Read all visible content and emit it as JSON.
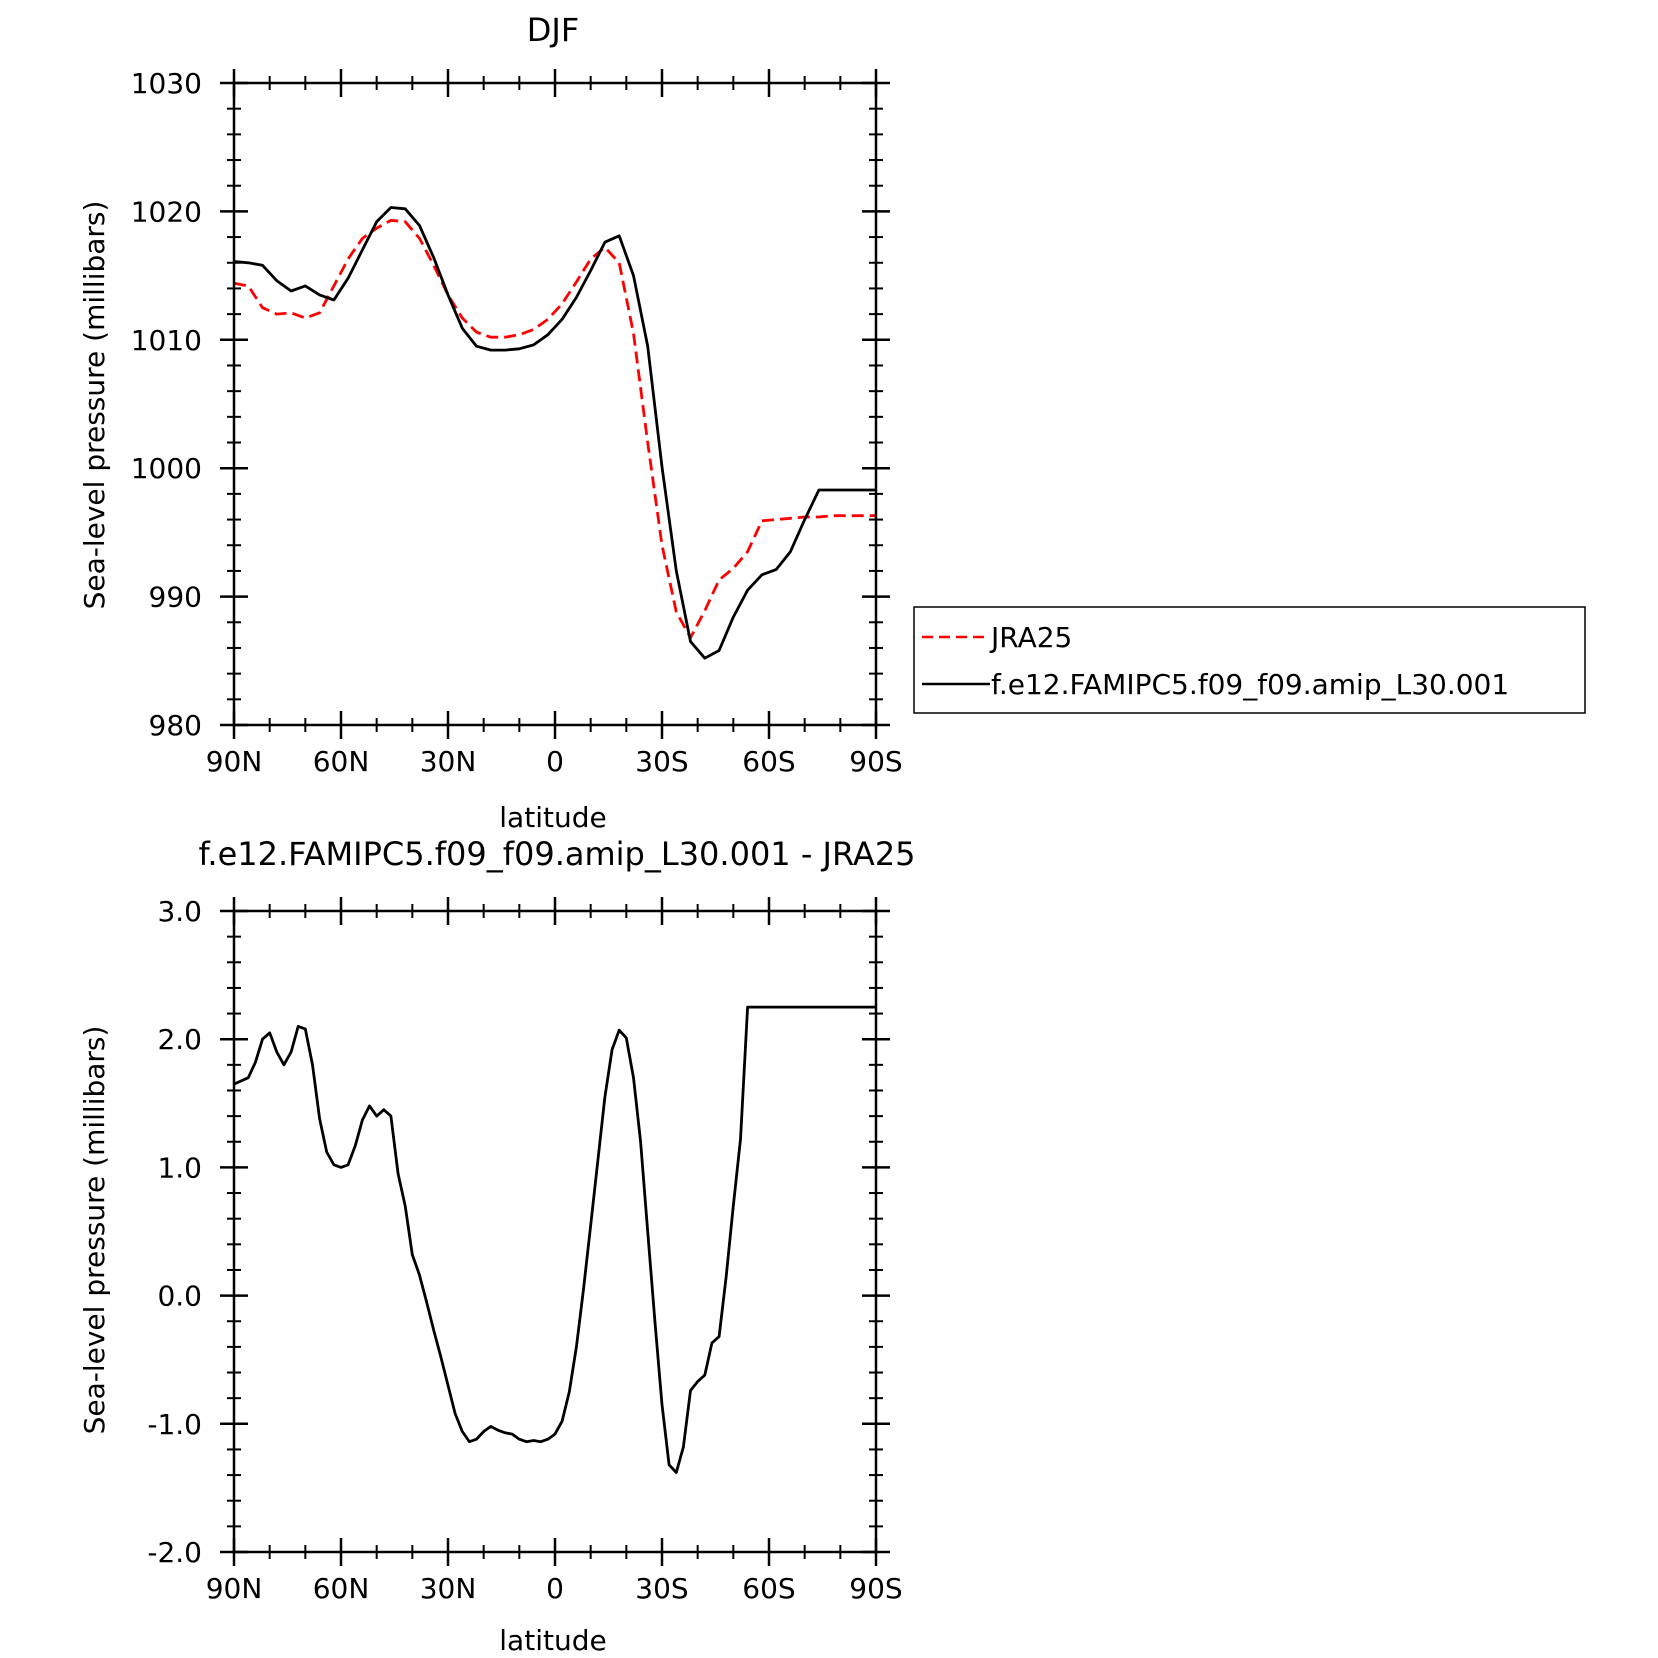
{
  "chart_data": [
    {
      "type": "line",
      "title": "DJF",
      "xlabel": "latitude",
      "ylabel": "Sea-level pressure (millibars)",
      "x_ticks": [
        "90N",
        "60N",
        "30N",
        "0",
        "30S",
        "60S",
        "90S"
      ],
      "x_tick_values": [
        90,
        60,
        30,
        0,
        -30,
        -60,
        -90
      ],
      "y_ticks": [
        "980",
        "990",
        "1000",
        "1010",
        "1020",
        "1030"
      ],
      "ylim": [
        980,
        1030
      ],
      "xlim": [
        90,
        -90
      ],
      "grid": false,
      "legend_position": "right, outside plot",
      "series": [
        {
          "name": "JRA25",
          "color": "#ff0000",
          "dash": "dashed",
          "x": [
            90,
            86,
            82,
            78,
            74,
            70,
            66,
            62,
            58,
            54,
            50,
            46,
            42,
            38,
            34,
            30,
            26,
            22,
            18,
            14,
            10,
            6,
            2,
            -2,
            -6,
            -10,
            -14,
            -18,
            -22,
            -26,
            -30,
            -34,
            -38,
            -42,
            -46,
            -50,
            -54,
            -58,
            -62,
            -66,
            -70,
            -74,
            -78,
            -82,
            -86,
            -90
          ],
          "y": [
            1014.4,
            1014.2,
            1012.5,
            1012.0,
            1012.1,
            1011.7,
            1012.1,
            1014.2,
            1016.3,
            1017.9,
            1018.7,
            1019.3,
            1019.2,
            1017.9,
            1015.8,
            1013.5,
            1011.7,
            1010.6,
            1010.2,
            1010.2,
            1010.4,
            1010.8,
            1011.6,
            1012.8,
            1014.5,
            1016.3,
            1017.2,
            1016.0,
            1010.5,
            1002.0,
            994.0,
            988.8,
            986.8,
            988.9,
            991.3,
            992.2,
            993.5,
            995.9,
            996.0,
            996.1,
            996.2,
            996.2,
            996.3,
            996.3,
            996.3,
            996.3
          ]
        },
        {
          "name": "f.e12.FAMIPC5.f09_f09.amip_L30.001",
          "color": "#000000",
          "dash": "solid",
          "x": [
            90,
            86,
            82,
            78,
            74,
            70,
            66,
            62,
            58,
            54,
            50,
            46,
            42,
            38,
            34,
            30,
            26,
            22,
            18,
            14,
            10,
            6,
            2,
            -2,
            -6,
            -10,
            -14,
            -18,
            -22,
            -26,
            -30,
            -34,
            -38,
            -42,
            -46,
            -50,
            -54,
            -58,
            -62,
            -66,
            -70,
            -74,
            -78,
            -82,
            -86,
            -90
          ],
          "y": [
            1016.1,
            1016.0,
            1015.8,
            1014.6,
            1013.8,
            1014.2,
            1013.5,
            1013.1,
            1014.8,
            1017.0,
            1019.2,
            1020.3,
            1020.2,
            1018.9,
            1016.4,
            1013.5,
            1010.9,
            1009.5,
            1009.2,
            1009.2,
            1009.3,
            1009.6,
            1010.4,
            1011.6,
            1013.3,
            1015.4,
            1017.6,
            1018.1,
            1015.0,
            1009.5,
            1000.1,
            992.0,
            986.5,
            985.2,
            985.8,
            988.4,
            990.5,
            991.7,
            992.1,
            993.5,
            996.0,
            998.3,
            998.3,
            998.3,
            998.3,
            998.3
          ]
        }
      ]
    },
    {
      "type": "line",
      "title": "f.e12.FAMIPC5.f09_f09.amip_L30.001 - JRA25",
      "xlabel": "latitude",
      "ylabel": "Sea-level pressure (millibars)",
      "x_ticks": [
        "90N",
        "60N",
        "30N",
        "0",
        "30S",
        "60S",
        "90S"
      ],
      "x_tick_values": [
        90,
        60,
        30,
        0,
        -30,
        -60,
        -90
      ],
      "y_ticks": [
        "-2.0",
        "-1.0",
        "0.0",
        "1.0",
        "2.0",
        "3.0"
      ],
      "ylim": [
        -2,
        3
      ],
      "xlim": [
        90,
        -90
      ],
      "grid": false,
      "series": [
        {
          "color": "#000000",
          "dash": "solid",
          "x": [
            90,
            86,
            84,
            82,
            80,
            78,
            76,
            74,
            72,
            70,
            68,
            66,
            64,
            62,
            60,
            58,
            56,
            54,
            52,
            50,
            48,
            46,
            44,
            42,
            40,
            38,
            36,
            34,
            32,
            30,
            28,
            26,
            24,
            22,
            20,
            18,
            16,
            14,
            12,
            10,
            8,
            6,
            4,
            2,
            0,
            -2,
            -4,
            -6,
            -8,
            -10,
            -12,
            -14,
            -16,
            -18,
            -20,
            -22,
            -24,
            -26,
            -28,
            -30,
            -32,
            -34,
            -36,
            -38,
            -40,
            -42,
            -44,
            -46,
            -48,
            -50,
            -52,
            -54,
            -56,
            -58,
            -60,
            -62,
            -64,
            -66,
            -68,
            -70,
            -72,
            -74,
            -76,
            -78,
            -80,
            -82,
            -84,
            -86,
            -88,
            -90
          ],
          "y": [
            1.65,
            1.7,
            1.82,
            2.0,
            2.05,
            1.9,
            1.8,
            1.9,
            2.1,
            2.08,
            1.8,
            1.38,
            1.12,
            1.02,
            1.0,
            1.02,
            1.17,
            1.37,
            1.48,
            1.4,
            1.45,
            1.4,
            0.95,
            0.7,
            0.32,
            0.16,
            -0.05,
            -0.27,
            -0.48,
            -0.7,
            -0.92,
            -1.06,
            -1.14,
            -1.12,
            -1.06,
            -1.02,
            -1.05,
            -1.07,
            -1.08,
            -1.12,
            -1.14,
            -1.13,
            -1.14,
            -1.12,
            -1.08,
            -0.98,
            -0.75,
            -0.4,
            0.05,
            0.55,
            1.05,
            1.55,
            1.92,
            2.07,
            2.01,
            1.7,
            1.2,
            0.5,
            -0.2,
            -0.85,
            -1.32,
            -1.38,
            -1.18,
            -0.74,
            -0.67,
            -0.62,
            -0.37,
            -0.32,
            0.15,
            0.7,
            1.22,
            2.25,
            2.25,
            2.25,
            2.25,
            2.25,
            2.25,
            2.25,
            2.25,
            2.25,
            2.25,
            2.25,
            2.25,
            2.25,
            2.25,
            2.25,
            2.25,
            2.25,
            2.25,
            2.25
          ]
        }
      ]
    }
  ]
}
